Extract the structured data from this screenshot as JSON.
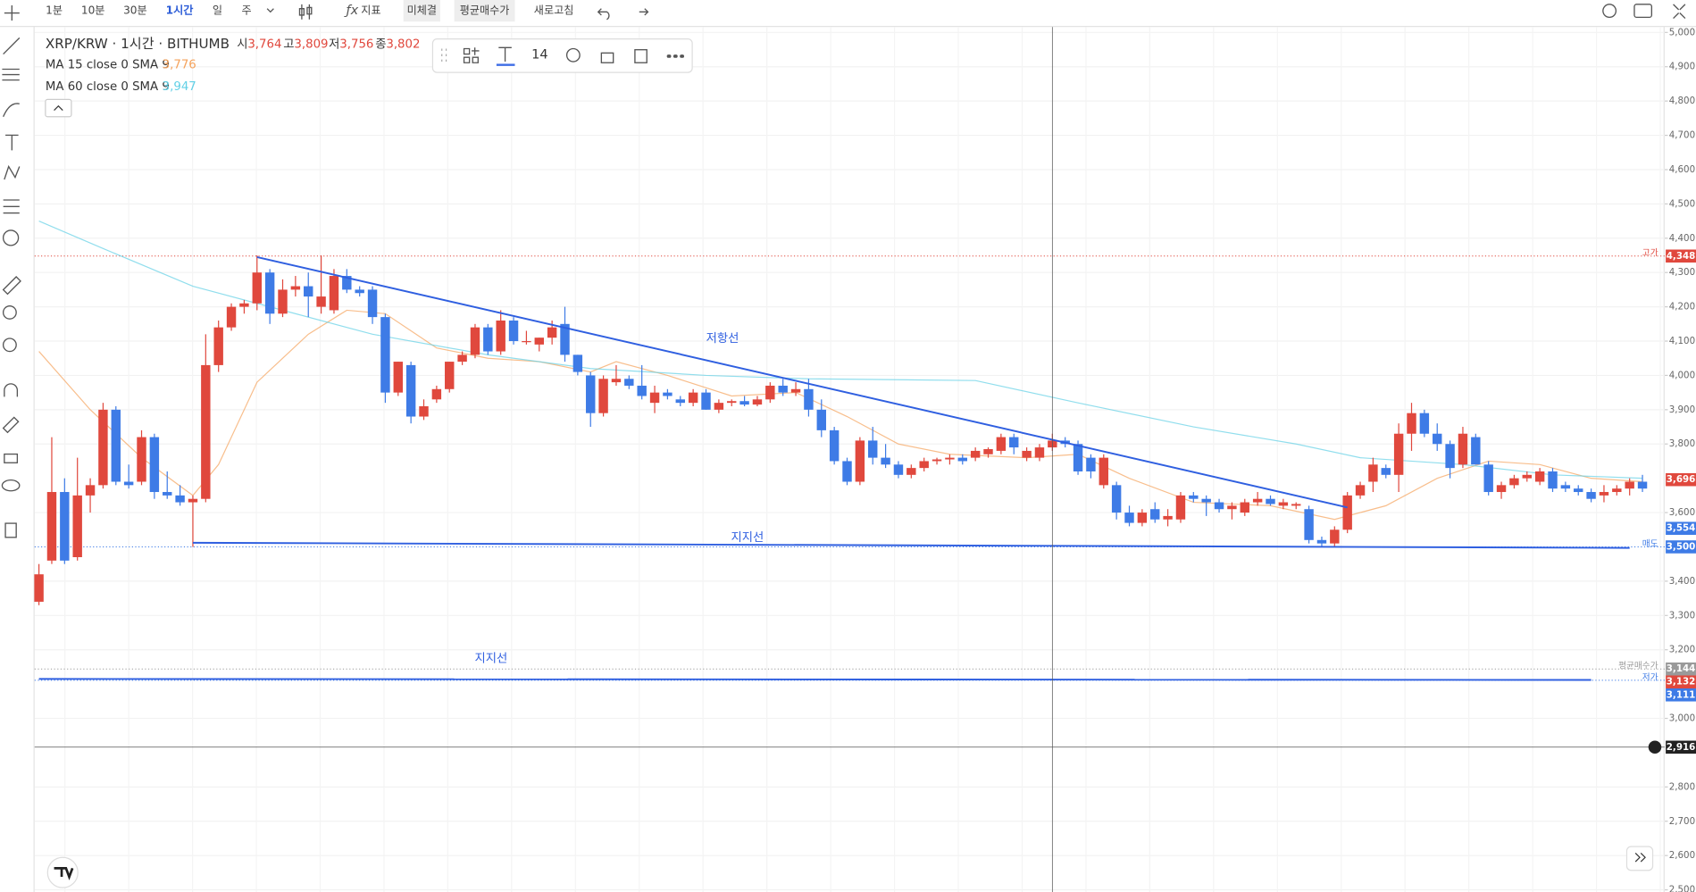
{
  "toolbar": {
    "intervals": [
      "1분",
      "10분",
      "30분",
      "1시간",
      "일",
      "주"
    ],
    "indicator": "지표",
    "buttons": [
      "미체결",
      "평균매수가",
      "새로고침"
    ]
  },
  "float_toolbar": {
    "font_size": "14"
  },
  "chart_data": {
    "type": "candlestick",
    "title": "XRP/KRW · 1시간 · BITHUMB",
    "ohlc_names": [
      "시",
      "고",
      "저",
      "종"
    ],
    "ohlc_values": [
      {
        "value": 3764,
        "label": "3,764"
      },
      {
        "value": 3809,
        "label": "3,809"
      },
      {
        "value": 3756,
        "label": "3,756"
      },
      {
        "value": 3802,
        "label": "3,802"
      }
    ],
    "up_color": "#e0483d",
    "down_color": "#3e7be6",
    "open": [
      3340,
      3460,
      3660,
      3470,
      3650,
      3680,
      3900,
      3690,
      3690,
      3820,
      3660,
      3650,
      3630,
      3640,
      4030,
      4140,
      4200,
      4210,
      4300,
      4180,
      4250,
      4260,
      4200,
      4190,
      4290,
      4250,
      4250,
      4170,
      3950,
      4030,
      3880,
      3930,
      3960,
      4040,
      4060,
      4140,
      4070,
      4160,
      4100,
      4090,
      4110,
      4150,
      4060,
      4000,
      3890,
      3980,
      3990,
      3970,
      3920,
      3950,
      3930,
      3920,
      3950,
      3900,
      3920,
      3925,
      3915,
      3930,
      3970,
      3950,
      3960,
      3900,
      3840,
      3750,
      3690,
      3810,
      3760,
      3740,
      3710,
      3730,
      3750,
      3755,
      3760,
      3760,
      3770,
      3780,
      3820,
      3760,
      3760,
      3790,
      3810,
      3800,
      3760,
      3680,
      3680,
      3600,
      3570,
      3610,
      3580,
      3580,
      3650,
      3640,
      3630,
      3610,
      3600,
      3630,
      3640,
      3620,
      3620,
      3610,
      3520,
      3510,
      3550,
      3650,
      3690,
      3730,
      3710,
      3830,
      3890,
      3830,
      3800,
      3740,
      3820,
      3740,
      3660,
      3680,
      3700,
      3690,
      3720,
      3680,
      3670,
      3660,
      3650,
      3660,
      3670,
      3690
    ],
    "high": [
      3450,
      3820,
      3700,
      3760,
      3700,
      3920,
      3910,
      3740,
      3840,
      3830,
      3720,
      3680,
      3650,
      4120,
      4160,
      4210,
      4220,
      4350,
      4310,
      4280,
      4290,
      4300,
      4350,
      4310,
      4310,
      4260,
      4260,
      4180,
      4040,
      4040,
      3930,
      3970,
      4040,
      4070,
      4150,
      4150,
      4190,
      4170,
      4130,
      4110,
      4160,
      4200,
      4060,
      4010,
      4000,
      4030,
      4000,
      4030,
      3970,
      3960,
      3940,
      3960,
      3960,
      3930,
      3930,
      3940,
      3940,
      3980,
      3990,
      3980,
      3990,
      3930,
      3850,
      3760,
      3820,
      3850,
      3800,
      3750,
      3740,
      3760,
      3760,
      3770,
      3770,
      3790,
      3790,
      3830,
      3830,
      3790,
      3800,
      3830,
      3820,
      3810,
      3770,
      3770,
      3690,
      3620,
      3610,
      3630,
      3610,
      3660,
      3660,
      3650,
      3640,
      3630,
      3640,
      3660,
      3650,
      3640,
      3630,
      3620,
      3530,
      3560,
      3660,
      3690,
      3760,
      3740,
      3860,
      3920,
      3900,
      3860,
      3810,
      3850,
      3830,
      3750,
      3690,
      3710,
      3720,
      3730,
      3730,
      3690,
      3680,
      3670,
      3680,
      3680,
      3700,
      3710
    ],
    "low": [
      3330,
      3450,
      3450,
      3460,
      3600,
      3670,
      3680,
      3670,
      3680,
      3640,
      3640,
      3620,
      3500,
      3630,
      4010,
      4130,
      4180,
      4190,
      4150,
      4170,
      4230,
      4170,
      4180,
      4180,
      4240,
      4230,
      4150,
      3920,
      3940,
      3860,
      3870,
      3920,
      3950,
      4030,
      4050,
      4060,
      4060,
      4090,
      4090,
      4070,
      4090,
      4040,
      4000,
      3850,
      3880,
      3970,
      3960,
      3930,
      3890,
      3930,
      3910,
      3910,
      3900,
      3890,
      3910,
      3910,
      3910,
      3920,
      3940,
      3940,
      3880,
      3820,
      3740,
      3680,
      3680,
      3740,
      3730,
      3700,
      3700,
      3720,
      3740,
      3740,
      3740,
      3750,
      3760,
      3770,
      3770,
      3750,
      3750,
      3780,
      3790,
      3710,
      3700,
      3670,
      3580,
      3560,
      3560,
      3570,
      3560,
      3570,
      3630,
      3590,
      3600,
      3580,
      3590,
      3620,
      3620,
      3610,
      3610,
      3510,
      3500,
      3500,
      3540,
      3640,
      3660,
      3700,
      3660,
      3780,
      3820,
      3780,
      3700,
      3730,
      3740,
      3650,
      3640,
      3670,
      3690,
      3680,
      3660,
      3660,
      3650,
      3630,
      3630,
      3650,
      3650,
      3660
    ],
    "close": [
      3420,
      3660,
      3460,
      3650,
      3680,
      3900,
      3690,
      3680,
      3820,
      3660,
      3650,
      3630,
      3640,
      4030,
      4140,
      4200,
      4210,
      4300,
      4180,
      4250,
      4260,
      4230,
      4230,
      4290,
      4250,
      4240,
      4170,
      3950,
      4040,
      3880,
      3910,
      3960,
      4040,
      4060,
      4140,
      4070,
      4160,
      4100,
      4100,
      4110,
      4140,
      4060,
      4010,
      3890,
      3990,
      3990,
      3970,
      3940,
      3950,
      3940,
      3920,
      3950,
      3900,
      3920,
      3925,
      3915,
      3930,
      3970,
      3950,
      3960,
      3900,
      3840,
      3750,
      3690,
      3810,
      3760,
      3740,
      3710,
      3730,
      3750,
      3755,
      3760,
      3750,
      3780,
      3785,
      3820,
      3790,
      3780,
      3790,
      3810,
      3800,
      3720,
      3720,
      3760,
      3600,
      3570,
      3600,
      3580,
      3590,
      3650,
      3640,
      3630,
      3610,
      3620,
      3630,
      3640,
      3625,
      3630,
      3625,
      3520,
      3510,
      3550,
      3650,
      3680,
      3740,
      3710,
      3830,
      3890,
      3830,
      3800,
      3730,
      3830,
      3740,
      3660,
      3680,
      3700,
      3710,
      3720,
      3670,
      3670,
      3660,
      3640,
      3660,
      3670,
      3690,
      3670
    ],
    "indicators": [
      {
        "name": "MA 15 close 0 SMA 9",
        "current": {
          "value": 3776,
          "label": "3,776"
        },
        "color": "#f5a25b",
        "x": [
          0,
          4,
          8,
          12,
          14,
          17,
          21,
          24,
          27,
          31,
          35,
          39,
          43,
          45,
          49,
          54,
          59,
          63,
          67,
          71,
          77,
          81,
          85,
          90,
          96,
          101,
          105,
          109,
          113,
          117,
          121,
          125
        ],
        "values": [
          4070,
          3900,
          3760,
          3650,
          3740,
          3980,
          4120,
          4190,
          4180,
          4080,
          4050,
          4040,
          4010,
          4040,
          4000,
          3940,
          3950,
          3880,
          3800,
          3770,
          3760,
          3770,
          3700,
          3630,
          3620,
          3580,
          3620,
          3700,
          3750,
          3740,
          3700,
          3690
        ]
      },
      {
        "name": "MA 60 close 0 SMA 9",
        "current": {
          "value": 3947,
          "label": "3,947"
        },
        "color": "#62d0e6",
        "x": [
          0,
          5,
          12,
          18,
          26,
          35,
          43,
          52,
          60,
          73,
          81,
          90,
          98,
          103,
          111,
          118,
          125
        ],
        "values": [
          4450,
          4370,
          4260,
          4200,
          4120,
          4060,
          4020,
          4000,
          3990,
          3985,
          3920,
          3850,
          3800,
          3760,
          3740,
          3710,
          3700
        ]
      }
    ],
    "drawings": [
      {
        "label": "저항선",
        "x": [
          17,
          102
        ],
        "values": [
          4345,
          3615
        ]
      },
      {
        "label": "지지선",
        "x": [
          12,
          124
        ],
        "values": [
          3512,
          3497
        ]
      },
      {
        "label": "지지선",
        "x": [
          0,
          121
        ],
        "values": [
          3115,
          3112
        ]
      }
    ],
    "price_lines": [
      {
        "name": "고가",
        "price": {
          "value": 4348,
          "label": "4,348"
        },
        "color": "#e0483d"
      },
      {
        "price": {
          "value": 3696,
          "label": "3,696"
        },
        "color": "#e0483d"
      },
      {
        "price": {
          "value": 3554,
          "label": "3,554"
        },
        "color": "#3e7be6"
      },
      {
        "name": "매도",
        "price": {
          "value": 3500,
          "label": "3,500"
        },
        "color": "#3e7be6"
      },
      {
        "name": "평균매수가",
        "price": {
          "value": 3144,
          "label": "3,144"
        },
        "color": "#9a9a9a"
      },
      {
        "price": {
          "value": 3132,
          "label": "3,132"
        },
        "color": "#e0483d"
      },
      {
        "name": "저가",
        "price": {
          "value": 3111,
          "label": "3,111"
        },
        "color": "#3e7be6"
      }
    ],
    "crosshair": {
      "x": 79,
      "price": {
        "value": 2916,
        "label": "2,916"
      }
    },
    "ylim": [
      2500,
      5000
    ],
    "yticks": [
      {
        "value": 5000,
        "label": "5,000"
      },
      {
        "value": 4900,
        "label": "4,900"
      },
      {
        "value": 4800,
        "label": "4,800"
      },
      {
        "value": 4700,
        "label": "4,700"
      },
      {
        "value": 4600,
        "label": "4,600"
      },
      {
        "value": 4500,
        "label": "4,500"
      },
      {
        "value": 4400,
        "label": "4,400"
      },
      {
        "value": 4300,
        "label": "4,300"
      },
      {
        "value": 4200,
        "label": "4,200"
      },
      {
        "value": 4100,
        "label": "4,100"
      },
      {
        "value": 4000,
        "label": "4,000"
      },
      {
        "value": 3900,
        "label": "3,900"
      },
      {
        "value": 3800,
        "label": "3,800"
      },
      {
        "value": 3600,
        "label": "3,600"
      },
      {
        "value": 3400,
        "label": "3,400"
      },
      {
        "value": 3300,
        "label": "3,300"
      },
      {
        "value": 3200,
        "label": "3,200"
      },
      {
        "value": 3000,
        "label": "3,000"
      },
      {
        "value": 2800,
        "label": "2,800"
      },
      {
        "value": 2700,
        "label": "2,700"
      },
      {
        "value": 2600,
        "label": "2,600"
      },
      {
        "value": 2500,
        "label": "2,500"
      }
    ],
    "grid": true
  }
}
